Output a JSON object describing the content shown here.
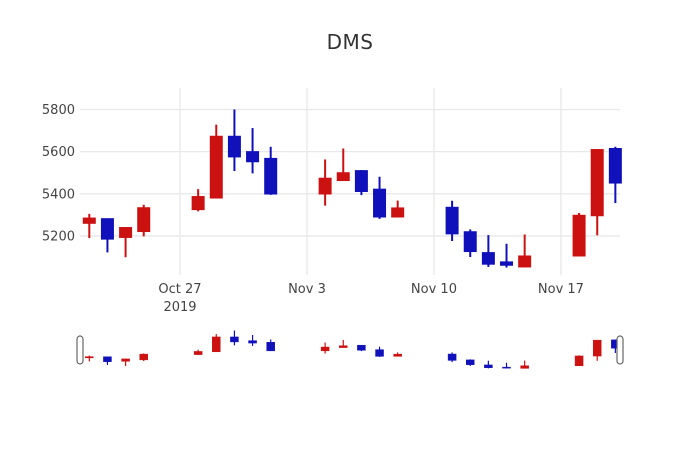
{
  "title": "DMS",
  "colors": {
    "background": "#ffffff",
    "increasing": "#1111bb",
    "decreasing": "#cc1111",
    "grid": "#e8e8e8",
    "tick_text": "#444444",
    "title_text": "#333333",
    "slider_handle_fill": "#ffffff",
    "slider_handle_border": "#666666"
  },
  "chart_data": {
    "type": "candlestick",
    "title": "DMS",
    "legend": "none",
    "grid": "on",
    "xlabel": "",
    "ylabel": "",
    "y_range": [
      5029,
      5902
    ],
    "y_ticks": [
      {
        "value": 5200,
        "label": "5200"
      },
      {
        "value": 5400,
        "label": "5400"
      },
      {
        "value": 5600,
        "label": "5600"
      },
      {
        "value": 5800,
        "label": "5800"
      }
    ],
    "x_ticks": [
      {
        "date": "2019-10-27",
        "label": "Oct 27",
        "sublabel": "2019"
      },
      {
        "date": "2019-11-03",
        "label": "Nov 3",
        "sublabel": ""
      },
      {
        "date": "2019-11-10",
        "label": "Nov 10",
        "sublabel": ""
      },
      {
        "date": "2019-11-17",
        "label": "Nov 17",
        "sublabel": ""
      }
    ],
    "candles": [
      {
        "date": "2019-10-22",
        "open": 5285,
        "high": 5305,
        "low": 5190,
        "close": 5260
      },
      {
        "date": "2019-10-23",
        "open": 5185,
        "high": 5283,
        "low": 5122,
        "close": 5282
      },
      {
        "date": "2019-10-24",
        "open": 5240,
        "high": 5241,
        "low": 5099,
        "close": 5193
      },
      {
        "date": "2019-10-25",
        "open": 5334,
        "high": 5348,
        "low": 5198,
        "close": 5221
      },
      {
        "date": "2019-10-28",
        "open": 5387,
        "high": 5422,
        "low": 5317,
        "close": 5325
      },
      {
        "date": "2019-10-29",
        "open": 5673,
        "high": 5728,
        "low": 5378,
        "close": 5380
      },
      {
        "date": "2019-10-30",
        "open": 5575,
        "high": 5800,
        "low": 5508,
        "close": 5673
      },
      {
        "date": "2019-10-31",
        "open": 5552,
        "high": 5712,
        "low": 5497,
        "close": 5600
      },
      {
        "date": "2019-11-01",
        "open": 5399,
        "high": 5623,
        "low": 5395,
        "close": 5568
      },
      {
        "date": "2019-11-04",
        "open": 5474,
        "high": 5563,
        "low": 5344,
        "close": 5399
      },
      {
        "date": "2019-11-05",
        "open": 5500,
        "high": 5615,
        "low": 5461,
        "close": 5463
      },
      {
        "date": "2019-11-06",
        "open": 5411,
        "high": 5513,
        "low": 5394,
        "close": 5510
      },
      {
        "date": "2019-11-07",
        "open": 5290,
        "high": 5481,
        "low": 5281,
        "close": 5422
      },
      {
        "date": "2019-11-08",
        "open": 5333,
        "high": 5368,
        "low": 5288,
        "close": 5290
      },
      {
        "date": "2019-11-11",
        "open": 5210,
        "high": 5367,
        "low": 5176,
        "close": 5336
      },
      {
        "date": "2019-11-12",
        "open": 5126,
        "high": 5231,
        "low": 5100,
        "close": 5220
      },
      {
        "date": "2019-11-13",
        "open": 5066,
        "high": 5204,
        "low": 5053,
        "close": 5121
      },
      {
        "date": "2019-11-14",
        "open": 5061,
        "high": 5163,
        "low": 5050,
        "close": 5077
      },
      {
        "date": "2019-11-15",
        "open": 5105,
        "high": 5207,
        "low": 5051,
        "close": 5053
      },
      {
        "date": "2019-11-18",
        "open": 5298,
        "high": 5309,
        "low": 5103,
        "close": 5105
      },
      {
        "date": "2019-11-19",
        "open": 5610,
        "high": 5612,
        "low": 5203,
        "close": 5296
      },
      {
        "date": "2019-11-20",
        "open": 5451,
        "high": 5623,
        "low": 5356,
        "close": 5615
      }
    ],
    "rangeslider": {
      "visible": true,
      "value_top": 5800,
      "value_bottom": 5050
    }
  }
}
